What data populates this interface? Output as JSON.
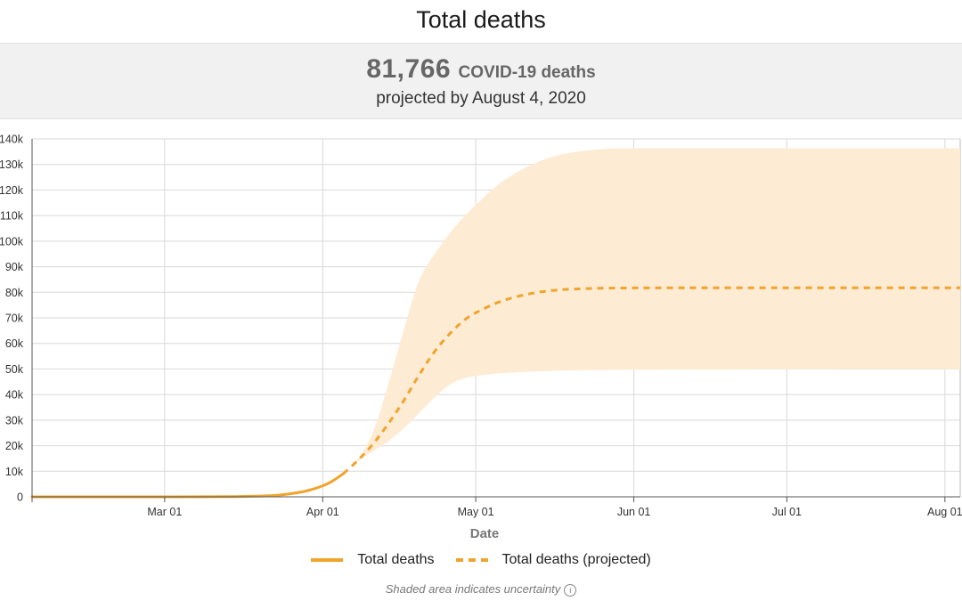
{
  "header": {
    "title": "Total deaths"
  },
  "summary": {
    "count": "81,766",
    "unit": "COVID-19 deaths",
    "subtitle": "projected by August 4, 2020"
  },
  "legend": {
    "items": [
      {
        "label": "Total deaths",
        "style": "solid"
      },
      {
        "label": "Total deaths (projected)",
        "style": "dashed"
      }
    ]
  },
  "footnote": {
    "text": "Shaded area indicates uncertainty",
    "icon": "info-icon"
  },
  "colors": {
    "line": "#f0a42c",
    "band": "#fdebd3",
    "grid": "#d9d9d9"
  },
  "chart_data": {
    "type": "line",
    "xlabel": "Date",
    "ylabel": "",
    "x_range": [
      "2020-02-04",
      "2020-08-04"
    ],
    "x_ticks": [
      {
        "date": "2020-03-01",
        "label": "Mar 01"
      },
      {
        "date": "2020-04-01",
        "label": "Apr 01"
      },
      {
        "date": "2020-05-01",
        "label": "May 01"
      },
      {
        "date": "2020-06-01",
        "label": "Jun 01"
      },
      {
        "date": "2020-07-01",
        "label": "Jul 01"
      },
      {
        "date": "2020-08-01",
        "label": "Aug 01"
      }
    ],
    "ylim": [
      0,
      140000
    ],
    "y_ticks": [
      {
        "value": 0,
        "label": "0"
      },
      {
        "value": 10000,
        "label": "10k"
      },
      {
        "value": 20000,
        "label": "20k"
      },
      {
        "value": 30000,
        "label": "30k"
      },
      {
        "value": 40000,
        "label": "40k"
      },
      {
        "value": 50000,
        "label": "50k"
      },
      {
        "value": 60000,
        "label": "60k"
      },
      {
        "value": 70000,
        "label": "70k"
      },
      {
        "value": 80000,
        "label": "80k"
      },
      {
        "value": 90000,
        "label": "90k"
      },
      {
        "value": 100000,
        "label": "100k"
      },
      {
        "value": 110000,
        "label": "110k"
      },
      {
        "value": 120000,
        "label": "120k"
      },
      {
        "value": 130000,
        "label": "130k"
      },
      {
        "value": 140000,
        "label": "140k"
      }
    ],
    "grid": true,
    "legend_position": "bottom",
    "series": [
      {
        "name": "Total deaths",
        "style": "solid",
        "points": [
          [
            "2020-02-04",
            0
          ],
          [
            "2020-02-20",
            0
          ],
          [
            "2020-03-01",
            10
          ],
          [
            "2020-03-10",
            40
          ],
          [
            "2020-03-15",
            100
          ],
          [
            "2020-03-20",
            300
          ],
          [
            "2020-03-23",
            600
          ],
          [
            "2020-03-26",
            1300
          ],
          [
            "2020-03-29",
            2400
          ],
          [
            "2020-04-01",
            4300
          ],
          [
            "2020-04-03",
            6300
          ],
          [
            "2020-04-05",
            9000
          ]
        ]
      },
      {
        "name": "Total deaths (projected)",
        "style": "dashed",
        "points": [
          [
            "2020-04-05",
            9000
          ],
          [
            "2020-04-08",
            14500
          ],
          [
            "2020-04-11",
            21000
          ],
          [
            "2020-04-14",
            29000
          ],
          [
            "2020-04-17",
            38000
          ],
          [
            "2020-04-20",
            48000
          ],
          [
            "2020-04-23",
            57000
          ],
          [
            "2020-04-26",
            64000
          ],
          [
            "2020-04-29",
            69500
          ],
          [
            "2020-05-02",
            73000
          ],
          [
            "2020-05-06",
            76500
          ],
          [
            "2020-05-11",
            79200
          ],
          [
            "2020-05-16",
            80700
          ],
          [
            "2020-05-22",
            81400
          ],
          [
            "2020-06-01",
            81700
          ],
          [
            "2020-07-01",
            81766
          ],
          [
            "2020-08-04",
            81766
          ]
        ]
      }
    ],
    "uncertainty_band": {
      "upper": [
        [
          "2020-04-05",
          9000
        ],
        [
          "2020-04-08",
          15000
        ],
        [
          "2020-04-11",
          26000
        ],
        [
          "2020-04-14",
          45000
        ],
        [
          "2020-04-17",
          66000
        ],
        [
          "2020-04-20",
          85000
        ],
        [
          "2020-04-24",
          98000
        ],
        [
          "2020-04-28",
          108000
        ],
        [
          "2020-05-02",
          116000
        ],
        [
          "2020-05-06",
          123000
        ],
        [
          "2020-05-11",
          129000
        ],
        [
          "2020-05-16",
          133000
        ],
        [
          "2020-05-21",
          135000
        ],
        [
          "2020-05-26",
          136000
        ],
        [
          "2020-06-01",
          136300
        ],
        [
          "2020-07-01",
          136300
        ],
        [
          "2020-08-04",
          136300
        ]
      ],
      "lower": [
        [
          "2020-04-05",
          9000
        ],
        [
          "2020-04-08",
          14000
        ],
        [
          "2020-04-11",
          18000
        ],
        [
          "2020-04-14",
          22000
        ],
        [
          "2020-04-17",
          27000
        ],
        [
          "2020-04-20",
          33000
        ],
        [
          "2020-04-23",
          39000
        ],
        [
          "2020-04-26",
          44000
        ],
        [
          "2020-04-29",
          46500
        ],
        [
          "2020-05-03",
          47800
        ],
        [
          "2020-05-08",
          48600
        ],
        [
          "2020-05-15",
          49200
        ],
        [
          "2020-05-25",
          49600
        ],
        [
          "2020-06-15",
          49800
        ],
        [
          "2020-08-04",
          49900
        ]
      ]
    }
  }
}
